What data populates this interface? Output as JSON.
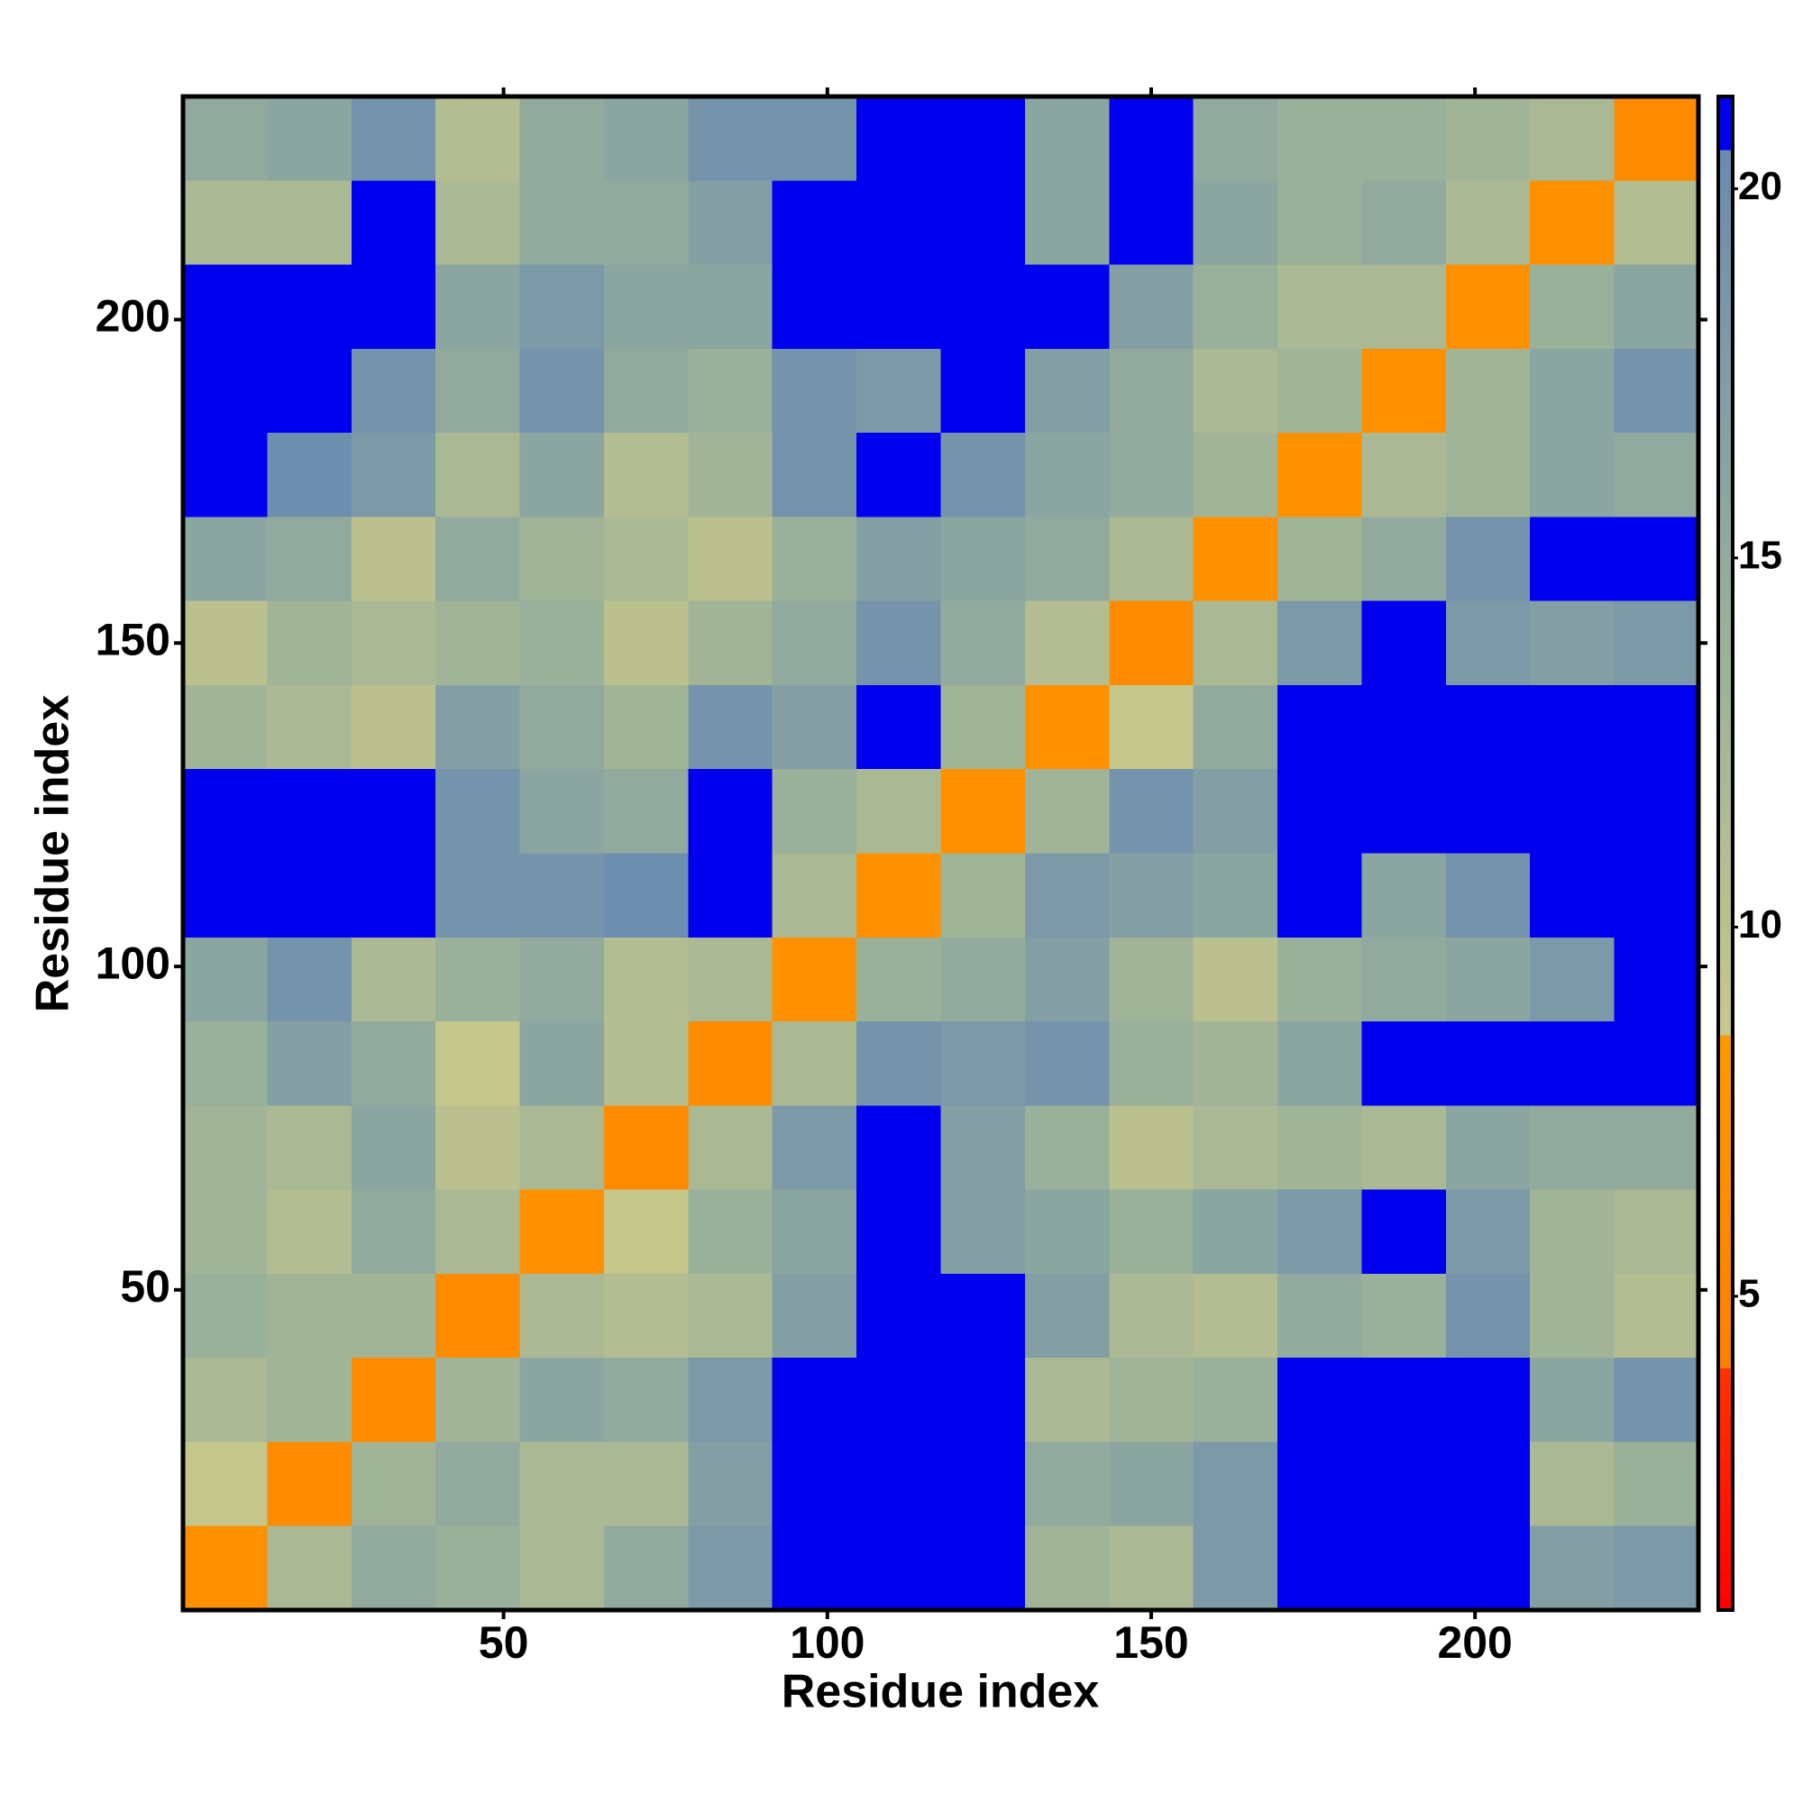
{
  "chart_data": {
    "type": "heatmap",
    "xlabel": "Residue index",
    "ylabel": "Residue index",
    "xlim": [
      0.5,
      234.5
    ],
    "ylim": [
      0.5,
      234.5
    ],
    "xticks": [
      50,
      100,
      150,
      200
    ],
    "yticks": [
      50,
      100,
      150,
      200
    ],
    "x_bins": [
      0.5,
      13.5,
      26.5,
      39.5,
      52.5,
      65.5,
      78.5,
      91.5,
      104.5,
      117.5,
      130.5,
      143.5,
      156.5,
      169.5,
      182.5,
      195.5,
      208.5,
      221.5,
      234.5
    ],
    "y_bins": [
      0.5,
      13.5,
      26.5,
      39.5,
      52.5,
      65.5,
      78.5,
      91.5,
      104.5,
      117.5,
      130.5,
      143.5,
      156.5,
      169.5,
      182.5,
      195.5,
      208.5,
      221.5,
      234.5
    ],
    "z": [
      [
        7,
        12,
        15,
        14,
        12,
        15,
        18,
        21,
        21,
        21,
        13,
        12,
        18,
        21,
        21,
        21,
        17,
        18
      ],
      [
        9,
        6,
        13,
        15,
        12,
        12,
        17,
        21,
        21,
        21,
        15,
        16,
        18,
        21,
        21,
        21,
        12,
        14
      ],
      [
        12,
        13,
        6,
        13,
        16,
        15,
        18,
        21,
        21,
        21,
        12,
        13,
        14,
        21,
        21,
        21,
        16,
        19
      ],
      [
        14,
        13,
        13,
        6,
        12,
        11,
        12,
        17,
        21,
        21,
        17,
        12,
        11,
        15,
        14,
        19,
        13,
        11
      ],
      [
        13,
        11,
        15,
        12,
        7,
        9,
        14,
        16,
        21,
        17,
        16,
        14,
        16,
        18,
        21,
        18,
        13,
        12
      ],
      [
        13,
        12,
        16,
        10,
        12,
        6,
        12,
        18,
        21,
        17,
        14,
        10,
        12,
        13,
        12,
        16,
        15,
        15
      ],
      [
        14,
        17,
        15,
        9,
        16,
        11,
        6,
        12,
        19,
        18,
        19,
        14,
        13,
        16,
        21,
        21,
        21,
        21
      ],
      [
        16,
        19,
        12,
        14,
        15,
        11,
        12,
        7,
        14,
        15,
        17,
        13,
        10,
        14,
        15,
        16,
        18,
        21
      ],
      [
        21,
        21,
        21,
        19,
        19,
        20,
        21,
        12,
        7,
        13,
        18,
        17,
        16,
        21,
        16,
        19,
        21,
        21
      ],
      [
        21,
        21,
        21,
        19,
        16,
        15,
        21,
        14,
        12,
        7,
        13,
        19,
        17,
        21,
        21,
        21,
        21,
        21
      ],
      [
        13,
        12,
        10,
        17,
        15,
        13,
        19,
        17,
        21,
        13,
        7,
        9,
        15,
        21,
        21,
        21,
        21,
        21
      ],
      [
        10,
        13,
        12,
        13,
        14,
        10,
        13,
        15,
        19,
        15,
        11,
        6,
        12,
        18,
        21,
        18,
        17,
        18
      ],
      [
        16,
        15,
        10,
        15,
        13,
        12,
        10,
        14,
        17,
        16,
        15,
        12,
        7,
        13,
        15,
        19,
        21,
        21
      ],
      [
        21,
        20,
        18,
        12,
        16,
        11,
        13,
        19,
        21,
        19,
        16,
        15,
        13,
        7,
        12,
        13,
        16,
        15
      ],
      [
        21,
        21,
        19,
        15,
        19,
        15,
        14,
        19,
        18,
        21,
        17,
        15,
        12,
        13,
        7,
        13,
        16,
        19
      ],
      [
        21,
        21,
        21,
        16,
        18,
        16,
        16,
        21,
        21,
        21,
        21,
        17,
        14,
        12,
        12,
        7,
        14,
        16
      ],
      [
        12,
        12,
        21,
        12,
        15,
        15,
        17,
        21,
        21,
        21,
        16,
        21,
        16,
        14,
        15,
        12,
        7,
        11
      ],
      [
        15,
        16,
        19,
        11,
        15,
        16,
        19,
        19,
        21,
        21,
        16,
        21,
        15,
        14,
        14,
        13,
        12,
        6
      ]
    ],
    "colorbar": {
      "lim": [
        0.75,
        21.25
      ],
      "ticks": [
        5,
        10,
        15,
        20
      ]
    },
    "colormap": [
      {
        "value": 0.75,
        "color": "#ff0000"
      },
      {
        "value": 4,
        "color": "#ff3300"
      },
      {
        "value": 4,
        "color": "#ff8000"
      },
      {
        "value": 8.5,
        "color": "#ff9900"
      },
      {
        "value": 8.5,
        "color": "#c8c88a"
      },
      {
        "value": 14,
        "color": "#99b09a"
      },
      {
        "value": 20.5,
        "color": "#6a8bb0"
      },
      {
        "value": 20.5,
        "color": "#0000ee"
      },
      {
        "value": 21.25,
        "color": "#0000ee"
      }
    ]
  }
}
